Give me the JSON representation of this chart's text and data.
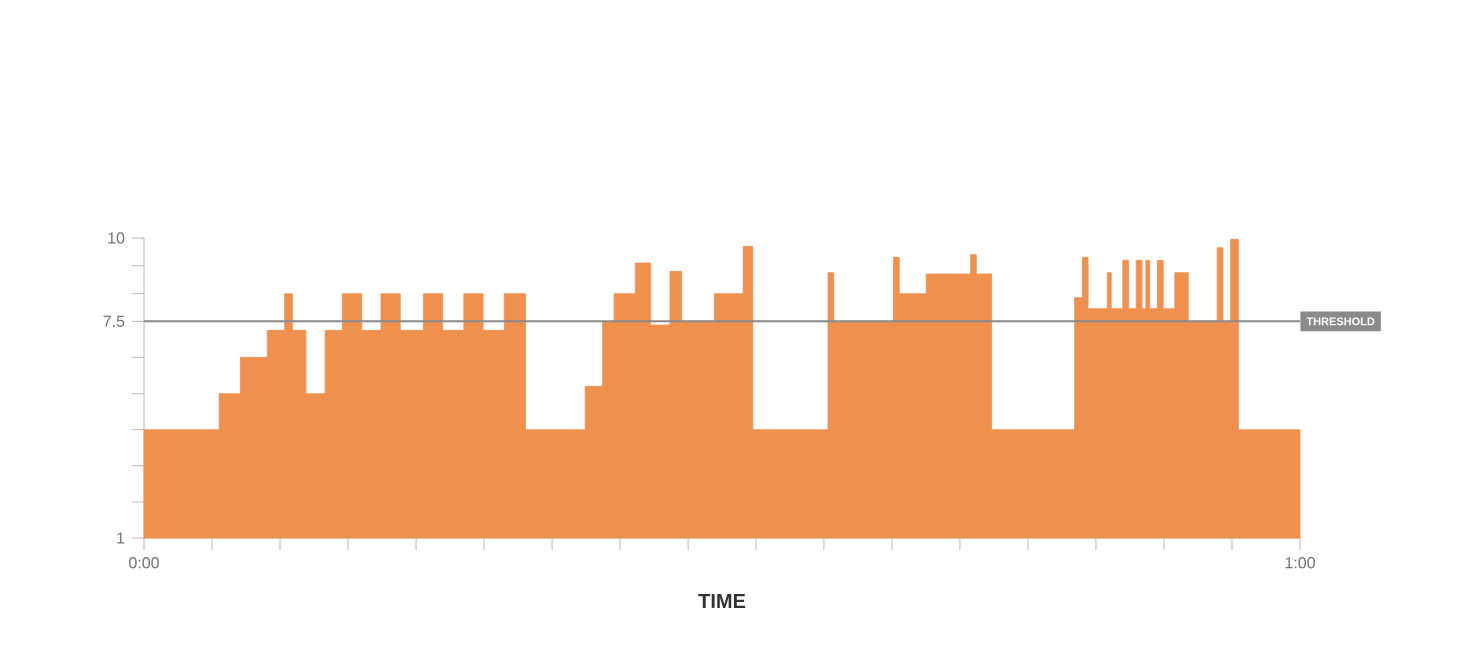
{
  "chart_data": {
    "type": "area",
    "xlabel": "TIME",
    "x": [
      0,
      3.9,
      5.0,
      6.4,
      7.3,
      7.7,
      8.4,
      9.4,
      10.3,
      11.3,
      12.3,
      13.3,
      14.5,
      15.5,
      16.6,
      17.6,
      18.7,
      19.8,
      22.9,
      23.8,
      24.4,
      25.5,
      26.3,
      27.3,
      27.9,
      29.6,
      31.1,
      31.6,
      35.5,
      35.8,
      38.9,
      39.2,
      40.6,
      42.9,
      43.2,
      44.0,
      48.3,
      48.7,
      49.0,
      50.0,
      50.2,
      50.8,
      51.1,
      51.5,
      51.8,
      52.0,
      52.2,
      52.6,
      52.9,
      53.5,
      54.2,
      55.7,
      56.0,
      56.4,
      56.8,
      60
    ],
    "series": [
      {
        "color": "#f0904f",
        "values": [
          4.25,
          5.33,
          6.42,
          7.23,
          8.33,
          7.23,
          5.33,
          7.23,
          8.33,
          7.23,
          8.33,
          7.23,
          8.33,
          7.23,
          8.33,
          7.23,
          8.33,
          4.25,
          5.55,
          7.5,
          8.33,
          9.25,
          7.39,
          9.0,
          7.5,
          8.33,
          9.75,
          4.25,
          8.96,
          7.5,
          9.42,
          8.33,
          8.92,
          9.5,
          8.92,
          4.25,
          8.21,
          9.42,
          7.88,
          8.96,
          7.88,
          9.33,
          7.88,
          9.33,
          7.88,
          9.33,
          7.88,
          9.33,
          7.88,
          8.96,
          7.5,
          9.71,
          7.5,
          9.96,
          4.25,
          4.25
        ]
      }
    ],
    "xlim": [
      0,
      60
    ],
    "xticks": [
      {
        "value": 0,
        "label": "0:00"
      },
      {
        "value": 3.53,
        "label": null
      },
      {
        "value": 7.06,
        "label": null
      },
      {
        "value": 10.59,
        "label": null
      },
      {
        "value": 14.12,
        "label": null
      },
      {
        "value": 17.65,
        "label": null
      },
      {
        "value": 21.18,
        "label": null
      },
      {
        "value": 24.71,
        "label": null
      },
      {
        "value": 28.24,
        "label": null
      },
      {
        "value": 31.76,
        "label": null
      },
      {
        "value": 35.29,
        "label": null
      },
      {
        "value": 38.82,
        "label": null
      },
      {
        "value": 42.35,
        "label": null
      },
      {
        "value": 45.88,
        "label": null
      },
      {
        "value": 49.41,
        "label": null
      },
      {
        "value": 52.94,
        "label": null
      },
      {
        "value": 56.47,
        "label": null
      },
      {
        "value": 60,
        "label": "1:00"
      }
    ],
    "ylim": [
      1,
      10
    ],
    "yticks": [
      1,
      {
        "value": 2.08,
        "label": null
      },
      {
        "value": 3.17,
        "label": null
      },
      {
        "value": 4.25,
        "label": null
      },
      {
        "value": 5.33,
        "label": null
      },
      {
        "value": 6.42,
        "label": null
      },
      7.5,
      {
        "value": 8.33,
        "label": null
      },
      {
        "value": 9.17,
        "label": null
      },
      10
    ],
    "ref_lines": [
      {
        "axis": "y",
        "value": 7.5,
        "label": "THRESHOLD",
        "color": "#8a8a8a"
      }
    ],
    "grid": false
  }
}
